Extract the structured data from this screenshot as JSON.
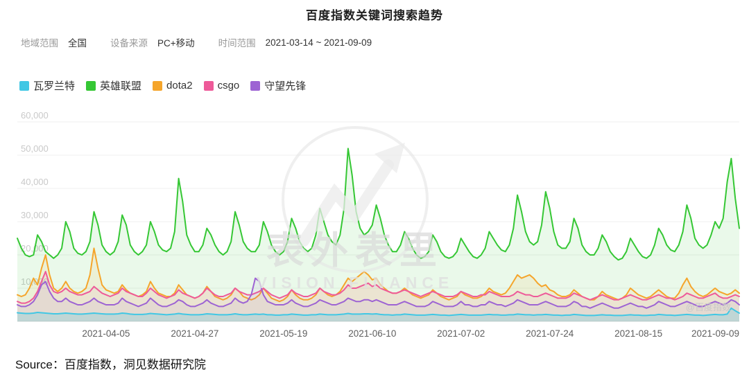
{
  "title": "百度指数关键词搜索趋势",
  "filters": [
    {
      "label": "地域范围",
      "value": "全国"
    },
    {
      "label": "设备来源",
      "value": "PC+移动"
    },
    {
      "label": "时间范围",
      "value": "2021-03-14 ~ 2021-09-09"
    }
  ],
  "legend": [
    {
      "label": "瓦罗兰特",
      "color": "#41C7E4"
    },
    {
      "label": "英雄联盟",
      "color": "#35C734"
    },
    {
      "label": "dota2",
      "color": "#F5A52B"
    },
    {
      "label": "csgo",
      "color": "#EE5A99"
    },
    {
      "label": "守望先锋",
      "color": "#9D63D3"
    }
  ],
  "watermark": {
    "cn": "表外表里",
    "en": "VISION FINANCE"
  },
  "chart_watermark": "@百度指数",
  "source": "Source：百度指数，洞见数据研究院",
  "chart_data": {
    "type": "line",
    "title": "百度指数关键词搜索趋势",
    "x_start": "2021-03-14",
    "x_end": "2021-09-09",
    "x_tick_labels": [
      "2021-04-05",
      "2021-04-27",
      "2021-05-19",
      "2021-06-10",
      "2021-07-02",
      "2021-07-24",
      "2021-08-15",
      "2021-09-09"
    ],
    "x_tick_indices": [
      22,
      44,
      66,
      88,
      110,
      132,
      154,
      179
    ],
    "ylim": [
      0,
      60000
    ],
    "y_ticks": [
      10000,
      20000,
      30000,
      40000,
      50000,
      60000
    ],
    "grid": true,
    "legend_position": "top",
    "series": [
      {
        "name": "瓦罗兰特",
        "color": "#41C7E4",
        "values": [
          2600,
          2500,
          2400,
          2400,
          2500,
          2700,
          2600,
          2500,
          2400,
          2300,
          2300,
          2400,
          2500,
          2400,
          2300,
          2200,
          2200,
          2300,
          2400,
          2500,
          2400,
          2300,
          2200,
          2200,
          2200,
          2300,
          2500,
          2400,
          2200,
          2100,
          2100,
          2100,
          2200,
          2400,
          2300,
          2200,
          2100,
          2000,
          2100,
          2200,
          2400,
          2200,
          2100,
          2000,
          2000,
          2000,
          2100,
          2300,
          2200,
          2100,
          2000,
          2000,
          2000,
          2100,
          2300,
          2100,
          2000,
          2000,
          2100,
          2200,
          2100,
          2200,
          2000,
          2000,
          1900,
          1900,
          2000,
          2000,
          2200,
          2100,
          2000,
          1900,
          1900,
          2000,
          2000,
          2200,
          2100,
          2000,
          2000,
          2000,
          2100,
          2200,
          2400,
          2200,
          2200,
          2200,
          2300,
          2300,
          2200,
          2300,
          2100,
          2000,
          2000,
          1900,
          2000,
          2000,
          2200,
          2100,
          2000,
          1900,
          1900,
          1900,
          2000,
          2100,
          2000,
          1900,
          1900,
          1800,
          1900,
          2000,
          2100,
          2000,
          1900,
          1900,
          1900,
          1900,
          2000,
          2100,
          2000,
          2000,
          1900,
          1900,
          2000,
          2000,
          2200,
          2100,
          2000,
          2000,
          1900,
          2000,
          2000,
          2100,
          2000,
          1900,
          1900,
          1800,
          1900,
          1900,
          2100,
          2000,
          1900,
          1800,
          1800,
          1800,
          1900,
          2000,
          1900,
          1900,
          1800,
          1800,
          1800,
          1900,
          2000,
          1900,
          1900,
          1800,
          1800,
          1900,
          1900,
          2100,
          2000,
          1900,
          1900,
          1800,
          1900,
          2000,
          2100,
          2000,
          1900,
          1900,
          1800,
          1900,
          2000,
          2100,
          2000,
          2000,
          2200,
          4000,
          3200,
          2500
        ]
      },
      {
        "name": "英雄联盟",
        "color": "#35C734",
        "values": [
          25000,
          22000,
          20000,
          19500,
          20000,
          26000,
          24000,
          21000,
          20000,
          19000,
          20000,
          22000,
          30000,
          27000,
          22000,
          20500,
          20000,
          21000,
          24000,
          33000,
          29000,
          23000,
          21000,
          20000,
          21000,
          24000,
          32000,
          29000,
          23000,
          21000,
          20000,
          21000,
          23000,
          30000,
          27000,
          23000,
          21500,
          21000,
          22000,
          27000,
          43000,
          36000,
          26000,
          23000,
          21000,
          21000,
          23000,
          28000,
          26000,
          23000,
          21000,
          20000,
          21000,
          24000,
          33000,
          29000,
          24000,
          22000,
          21000,
          21000,
          23000,
          30000,
          27000,
          23000,
          21000,
          20000,
          21000,
          24000,
          31000,
          28000,
          24000,
          22000,
          21000,
          22000,
          26000,
          34000,
          30000,
          26000,
          24000,
          23000,
          26000,
          34000,
          52000,
          44000,
          33000,
          28000,
          26000,
          27000,
          29000,
          35000,
          31000,
          26000,
          23000,
          21000,
          21000,
          23000,
          27000,
          25000,
          22000,
          20000,
          19000,
          19500,
          21000,
          26000,
          24000,
          21000,
          19500,
          19000,
          19500,
          21000,
          25000,
          23000,
          21000,
          19500,
          19000,
          20000,
          22000,
          27000,
          25000,
          23000,
          21500,
          21000,
          23000,
          28000,
          38000,
          33000,
          27000,
          24000,
          23000,
          24000,
          29000,
          39000,
          34000,
          27000,
          23000,
          22000,
          22000,
          24000,
          31000,
          28000,
          23000,
          21000,
          20000,
          20000,
          22000,
          26000,
          24000,
          21000,
          19500,
          18500,
          19000,
          21000,
          25000,
          23000,
          21000,
          19500,
          19000,
          20000,
          23000,
          28000,
          26000,
          23000,
          21500,
          21000,
          23000,
          27000,
          35000,
          31000,
          25000,
          23000,
          22000,
          23000,
          26000,
          30000,
          28000,
          31000,
          42000,
          49000,
          37000,
          28000
        ]
      },
      {
        "name": "dota2",
        "color": "#F5A52B",
        "values": [
          8000,
          7500,
          8000,
          10000,
          13000,
          11000,
          16000,
          20000,
          14000,
          10000,
          9000,
          10000,
          12000,
          10000,
          9000,
          8500,
          9000,
          10000,
          14000,
          22000,
          16000,
          11000,
          9500,
          9000,
          8500,
          9000,
          11000,
          9500,
          8500,
          8000,
          7500,
          8000,
          9000,
          12000,
          10000,
          8500,
          8000,
          7500,
          7500,
          8500,
          11000,
          9500,
          8000,
          7500,
          7000,
          7500,
          8500,
          10500,
          9000,
          7500,
          7000,
          6500,
          7000,
          8000,
          10000,
          9000,
          7500,
          7000,
          6500,
          7000,
          8000,
          10000,
          8500,
          7000,
          6500,
          6000,
          6500,
          7500,
          9500,
          8000,
          7000,
          6500,
          6500,
          7000,
          8000,
          10000,
          9000,
          8000,
          7500,
          8000,
          9000,
          11000,
          13000,
          12000,
          13000,
          14000,
          15000,
          14000,
          12500,
          13000,
          11000,
          10000,
          9000,
          8500,
          8500,
          9000,
          10000,
          9000,
          8000,
          7500,
          7000,
          7500,
          8000,
          9500,
          8500,
          7500,
          7000,
          6500,
          7000,
          7500,
          9000,
          8000,
          7500,
          7000,
          7000,
          7500,
          8500,
          10000,
          9000,
          8500,
          8000,
          8500,
          10000,
          12000,
          14000,
          13000,
          13500,
          14000,
          13000,
          11500,
          10500,
          11000,
          9500,
          9000,
          8000,
          7500,
          7500,
          8000,
          9500,
          8500,
          7500,
          7000,
          6500,
          6500,
          7500,
          9000,
          8000,
          7500,
          7000,
          6500,
          7000,
          8000,
          10000,
          9000,
          8000,
          7500,
          7000,
          7500,
          8500,
          9500,
          8500,
          7500,
          7000,
          7000,
          8500,
          11000,
          13000,
          10500,
          9000,
          8000,
          7500,
          8000,
          9000,
          10000,
          9000,
          8500,
          8000,
          8500,
          9500,
          8500
        ]
      },
      {
        "name": "csgo",
        "color": "#EE5A99",
        "values": [
          6000,
          5500,
          5500,
          6000,
          7000,
          9000,
          12000,
          15000,
          11000,
          9000,
          8500,
          9000,
          10000,
          9000,
          8500,
          8000,
          8000,
          8500,
          9000,
          10500,
          9500,
          8500,
          8000,
          7500,
          8000,
          8500,
          10000,
          9000,
          8500,
          8000,
          7500,
          7500,
          8500,
          10000,
          9000,
          8000,
          7500,
          7000,
          7500,
          8000,
          9500,
          8500,
          8000,
          7500,
          7000,
          7500,
          8500,
          10000,
          9000,
          8000,
          7500,
          7500,
          8000,
          8500,
          10000,
          9000,
          8500,
          8000,
          8000,
          8500,
          9000,
          10000,
          9000,
          8000,
          7500,
          7000,
          7500,
          8000,
          9500,
          8500,
          8000,
          7500,
          7500,
          8000,
          8500,
          10000,
          9000,
          8500,
          8000,
          8000,
          8500,
          9500,
          11000,
          10000,
          10000,
          10500,
          11000,
          11500,
          10500,
          11000,
          10000,
          9500,
          9000,
          8500,
          8500,
          9000,
          9500,
          9000,
          8500,
          8000,
          7500,
          8000,
          8500,
          9000,
          8500,
          8000,
          7500,
          7500,
          7500,
          8000,
          9000,
          8500,
          8000,
          7500,
          7500,
          8000,
          8000,
          9000,
          8500,
          8000,
          7500,
          7500,
          7500,
          8000,
          9000,
          8500,
          8000,
          8000,
          7500,
          7500,
          8000,
          8500,
          8000,
          7500,
          7000,
          7000,
          7000,
          7500,
          8500,
          8000,
          7500,
          7000,
          6500,
          7000,
          7500,
          8000,
          7500,
          7000,
          6500,
          6500,
          7000,
          7500,
          8000,
          7500,
          7000,
          6500,
          6500,
          7000,
          7500,
          8000,
          7500,
          7000,
          7000,
          6500,
          7000,
          7500,
          8500,
          8000,
          7500,
          7000,
          7000,
          7500,
          8000,
          8500,
          7500,
          7000,
          7000,
          7500,
          8000,
          7500
        ]
      },
      {
        "name": "守望先锋",
        "color": "#9D63D3",
        "values": [
          5000,
          4500,
          4500,
          5000,
          6000,
          8000,
          11000,
          12000,
          9000,
          7000,
          6000,
          6000,
          7000,
          6000,
          5500,
          5000,
          5000,
          5500,
          6000,
          7000,
          6000,
          5500,
          5000,
          5000,
          5000,
          5500,
          7000,
          6000,
          5500,
          5000,
          4500,
          5000,
          5500,
          7000,
          6000,
          5000,
          4500,
          4500,
          5000,
          5500,
          6500,
          6000,
          5000,
          4500,
          4500,
          5000,
          5500,
          6500,
          5500,
          5000,
          4500,
          4500,
          5000,
          5500,
          7000,
          6000,
          5500,
          6000,
          8000,
          13000,
          12000,
          8000,
          6000,
          5500,
          5000,
          5000,
          5000,
          5500,
          6500,
          5500,
          5000,
          4500,
          4500,
          5000,
          5500,
          6500,
          6000,
          5500,
          5000,
          5000,
          5500,
          6000,
          7000,
          6500,
          6000,
          6000,
          6500,
          6500,
          6000,
          6500,
          6000,
          5500,
          5000,
          5000,
          5000,
          5500,
          6000,
          5500,
          5000,
          4500,
          4500,
          4500,
          5000,
          6000,
          5500,
          5000,
          4500,
          4500,
          4500,
          5000,
          6000,
          5000,
          5000,
          4500,
          4500,
          5000,
          5000,
          6000,
          5500,
          5000,
          5000,
          4500,
          5000,
          5500,
          6500,
          6000,
          5500,
          5000,
          5000,
          5000,
          5500,
          6000,
          5500,
          5000,
          4500,
          4500,
          4500,
          5000,
          6000,
          5500,
          4500,
          4500,
          4000,
          4500,
          5000,
          5500,
          5000,
          4500,
          4000,
          4000,
          4500,
          5000,
          5500,
          5000,
          4500,
          4500,
          4000,
          4500,
          5000,
          6000,
          5500,
          5000,
          4500,
          4500,
          5000,
          5500,
          6000,
          5500,
          5000,
          4500,
          4500,
          5000,
          5500,
          6000,
          5500,
          5000,
          5500,
          6500,
          6000,
          5000
        ]
      }
    ]
  }
}
